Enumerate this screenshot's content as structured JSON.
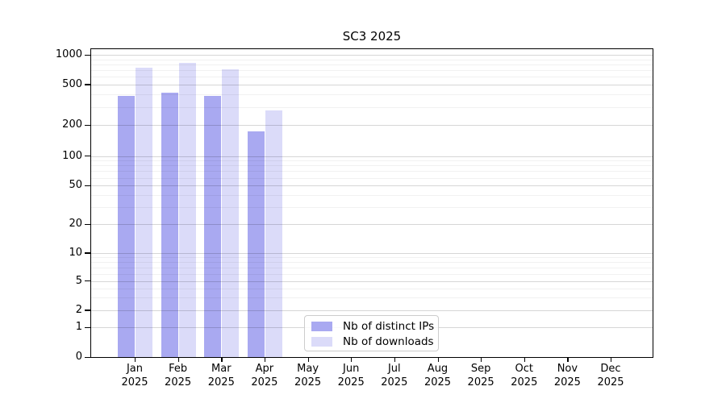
{
  "chart_data": {
    "type": "bar",
    "title": "SC3 2025",
    "categories": [
      "Jan 2025",
      "Feb 2025",
      "Mar 2025",
      "Apr 2025",
      "May 2025",
      "Jun 2025",
      "Jul 2025",
      "Aug 2025",
      "Sep 2025",
      "Oct 2025",
      "Nov 2025",
      "Dec 2025"
    ],
    "series": [
      {
        "name": "Nb of distinct IPs",
        "color": "#a9a9f1",
        "values": [
          390,
          415,
          390,
          175,
          null,
          null,
          null,
          null,
          null,
          null,
          null,
          null
        ]
      },
      {
        "name": "Nb of downloads",
        "color": "#dbdbf9",
        "values": [
          740,
          840,
          715,
          278,
          null,
          null,
          null,
          null,
          null,
          null,
          null,
          null
        ]
      }
    ],
    "y_ticks": [
      0,
      1,
      2,
      5,
      10,
      20,
      50,
      100,
      200,
      500,
      1000
    ],
    "y_scale": "symlog",
    "ylim": [
      0,
      1150
    ],
    "xlabel": "",
    "ylabel": "",
    "grid": "horizontal major + log-minor gridlines, drawn over bars",
    "legend_position": "lower center"
  }
}
